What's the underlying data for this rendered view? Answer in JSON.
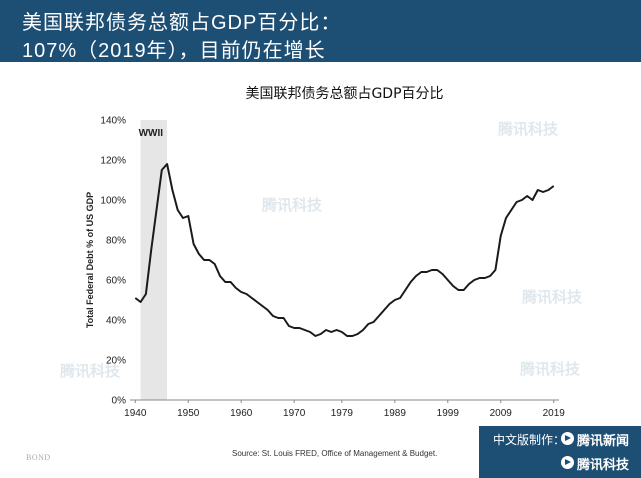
{
  "header": {
    "line1": "美国联邦债务总额占GDP百分比：",
    "line2": "107%（2019年），目前仍在增长"
  },
  "footer": {
    "source": "Source: St. Louis FRED, Office of Management & Budget.",
    "bond_mark": "BOND",
    "credit": "中文版制作：",
    "brand_news": "腾讯新闻",
    "brand_tech": "腾讯科技"
  },
  "watermark_text": "腾讯科技",
  "colors": {
    "header_bg": "#1d4e74",
    "line": "#1a1a1a",
    "wwii_band": "#e6e6e6"
  },
  "chart_data": {
    "type": "line",
    "title": "美国联邦债务总额占GDP百分比",
    "xlabel": "",
    "ylabel": "Total Federal Debt % of US GDP",
    "xlim": [
      1939,
      2020
    ],
    "ylim": [
      0,
      140
    ],
    "x_ticks": [
      1940,
      1950,
      1960,
      1970,
      1979,
      1989,
      1999,
      2009,
      2019
    ],
    "y_ticks": [
      0,
      20,
      40,
      60,
      80,
      100,
      120,
      140
    ],
    "y_tick_suffix": "%",
    "grid": false,
    "annotation": {
      "label": "WWII",
      "x_start": 1941,
      "x_end": 1946
    },
    "series": [
      {
        "x": [
          1940,
          1941,
          1942,
          1943,
          1944,
          1945,
          1946,
          1947,
          1948,
          1949,
          1950,
          1951,
          1952,
          1953,
          1954,
          1955,
          1956,
          1957,
          1958,
          1959,
          1960,
          1961,
          1962,
          1963,
          1964,
          1965,
          1966,
          1967,
          1968,
          1969,
          1970,
          1971,
          1972,
          1973,
          1974,
          1975,
          1976,
          1977,
          1978,
          1979,
          1980,
          1981,
          1982,
          1983,
          1984,
          1985,
          1986,
          1987,
          1988,
          1989,
          1990,
          1991,
          1992,
          1993,
          1994,
          1995,
          1996,
          1997,
          1998,
          1999,
          2000,
          2001,
          2002,
          2003,
          2004,
          2005,
          2006,
          2007,
          2008,
          2009,
          2010,
          2011,
          2012,
          2013,
          2014,
          2015,
          2016,
          2017,
          2018,
          2019
        ],
        "y": [
          51,
          49,
          53,
          75,
          95,
          115,
          118,
          105,
          95,
          91,
          92,
          78,
          73,
          70,
          70,
          68,
          62,
          59,
          59,
          56,
          54,
          53,
          51,
          49,
          47,
          45,
          42,
          41,
          41,
          37,
          36,
          36,
          35,
          34,
          32,
          33,
          35,
          34,
          35,
          34,
          32,
          32,
          33,
          35,
          38,
          39,
          42,
          45,
          48,
          50,
          51,
          55,
          59,
          62,
          64,
          64,
          65,
          65,
          63,
          60,
          57,
          55,
          55,
          58,
          60,
          61,
          61,
          62,
          65,
          82,
          91,
          95,
          99,
          100,
          102,
          100,
          105,
          104,
          105,
          107
        ]
      }
    ]
  }
}
